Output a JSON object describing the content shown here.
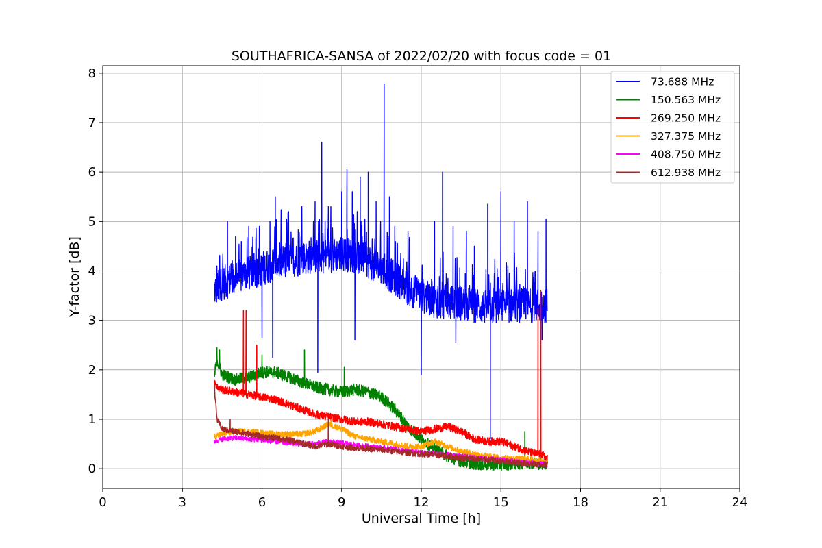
{
  "chart_data": {
    "type": "line",
    "title": "SOUTHAFRICA-SANSA of 2022/02/20 with focus code = 01",
    "xlabel": "Universal Time [h]",
    "ylabel": "Y-factor [dB]",
    "xlim": [
      0,
      24
    ],
    "ylim": [
      -0.4,
      8.15
    ],
    "xticks": [
      0,
      3,
      6,
      9,
      12,
      15,
      18,
      21,
      24
    ],
    "yticks": [
      0,
      1,
      2,
      3,
      4,
      5,
      6,
      7,
      8
    ],
    "grid": true,
    "legend_position": "top-right",
    "series": [
      {
        "name": " 73.688 MHz",
        "color": "#0000ff",
        "x": [
          4.2,
          4.5,
          5.0,
          5.5,
          6.0,
          6.5,
          7.0,
          7.5,
          8.0,
          8.5,
          9.0,
          9.5,
          10.0,
          10.5,
          11.0,
          11.5,
          12.0,
          12.5,
          13.0,
          13.5,
          14.0,
          14.5,
          15.0,
          15.5,
          16.0,
          16.5,
          16.75
        ],
        "y": [
          3.6,
          3.75,
          3.85,
          3.95,
          4.05,
          4.15,
          4.2,
          4.25,
          4.3,
          4.3,
          4.35,
          4.3,
          4.2,
          4.05,
          3.85,
          3.65,
          3.5,
          3.4,
          3.35,
          3.35,
          3.3,
          3.25,
          3.3,
          3.3,
          3.3,
          3.3,
          3.3
        ],
        "spikes": [
          [
            4.3,
            4.1
          ],
          [
            4.7,
            5.0
          ],
          [
            5.0,
            4.7
          ],
          [
            5.5,
            4.9
          ],
          [
            5.9,
            4.9
          ],
          [
            6.0,
            2.65
          ],
          [
            6.3,
            5.0
          ],
          [
            6.4,
            2.25
          ],
          [
            6.5,
            5.5
          ],
          [
            7.0,
            5.2
          ],
          [
            7.5,
            5.3
          ],
          [
            8.0,
            5.4
          ],
          [
            8.1,
            1.95
          ],
          [
            8.25,
            6.6
          ],
          [
            8.5,
            5.3
          ],
          [
            9.0,
            5.6
          ],
          [
            9.2,
            6.05
          ],
          [
            9.4,
            5.6
          ],
          [
            9.5,
            2.6
          ],
          [
            9.7,
            5.9
          ],
          [
            10.0,
            6.0
          ],
          [
            10.3,
            5.4
          ],
          [
            10.6,
            7.78
          ],
          [
            10.8,
            5.5
          ],
          [
            11.0,
            4.9
          ],
          [
            11.5,
            4.8
          ],
          [
            12.0,
            1.9
          ],
          [
            12.5,
            5.0
          ],
          [
            12.8,
            6.0
          ],
          [
            13.2,
            4.9
          ],
          [
            13.3,
            2.55
          ],
          [
            13.7,
            4.8
          ],
          [
            14.0,
            4.5
          ],
          [
            14.5,
            5.35
          ],
          [
            14.6,
            0.6
          ],
          [
            15.0,
            5.6
          ],
          [
            15.5,
            5.0
          ],
          [
            16.0,
            5.4
          ],
          [
            16.4,
            4.8
          ],
          [
            16.55,
            2.6
          ],
          [
            16.7,
            5.05
          ]
        ],
        "noise": 0.35
      },
      {
        "name": "150.563 MHz",
        "color": "#008000",
        "x": [
          4.2,
          4.3,
          4.5,
          5.0,
          5.5,
          6.0,
          6.5,
          7.0,
          7.5,
          8.0,
          8.5,
          9.0,
          9.5,
          10.0,
          10.5,
          11.0,
          11.5,
          12.0,
          12.5,
          13.0,
          13.5,
          14.0,
          14.5,
          15.0,
          15.5,
          16.0,
          16.5,
          16.75
        ],
        "y": [
          1.85,
          2.2,
          1.9,
          1.8,
          1.85,
          1.95,
          1.95,
          1.85,
          1.75,
          1.65,
          1.6,
          1.55,
          1.6,
          1.55,
          1.45,
          1.2,
          0.85,
          0.6,
          0.4,
          0.25,
          0.15,
          0.1,
          0.08,
          0.08,
          0.1,
          0.12,
          0.1,
          0.1
        ],
        "spikes": [
          [
            4.3,
            2.45
          ],
          [
            4.4,
            2.4
          ],
          [
            6.0,
            2.3
          ],
          [
            7.6,
            2.4
          ],
          [
            9.1,
            2.05
          ],
          [
            15.9,
            0.75
          ]
        ],
        "noise": 0.12
      },
      {
        "name": "269.250 MHz",
        "color": "#ff0000",
        "x": [
          4.2,
          4.3,
          4.5,
          5.0,
          5.5,
          6.0,
          6.5,
          7.0,
          7.5,
          8.0,
          8.5,
          9.0,
          9.5,
          10.0,
          10.5,
          11.0,
          11.5,
          12.0,
          12.5,
          13.0,
          13.5,
          14.0,
          14.5,
          15.0,
          15.5,
          16.0,
          16.3,
          16.5,
          16.75
        ],
        "y": [
          1.8,
          1.65,
          1.6,
          1.55,
          1.5,
          1.45,
          1.4,
          1.3,
          1.2,
          1.1,
          1.05,
          1.0,
          0.95,
          0.95,
          0.9,
          0.85,
          0.8,
          0.75,
          0.8,
          0.85,
          0.75,
          0.6,
          0.55,
          0.55,
          0.45,
          0.35,
          0.3,
          0.3,
          0.2
        ],
        "spikes": [
          [
            5.3,
            3.2
          ],
          [
            5.4,
            3.2
          ],
          [
            5.8,
            2.5
          ],
          [
            16.4,
            3.25
          ],
          [
            16.5,
            3.6
          ],
          [
            16.55,
            0.3
          ]
        ],
        "noise": 0.08
      },
      {
        "name": "327.375 MHz",
        "color": "#ffa500",
        "x": [
          4.2,
          4.5,
          5.0,
          5.5,
          6.0,
          6.5,
          7.0,
          7.5,
          8.0,
          8.5,
          9.0,
          9.5,
          10.0,
          10.5,
          11.0,
          11.5,
          12.0,
          12.5,
          13.0,
          13.5,
          14.0,
          14.5,
          15.0,
          15.5,
          16.0,
          16.5,
          16.75
        ],
        "y": [
          0.65,
          0.7,
          0.75,
          0.75,
          0.72,
          0.7,
          0.7,
          0.7,
          0.75,
          0.9,
          0.8,
          0.65,
          0.6,
          0.55,
          0.5,
          0.45,
          0.45,
          0.55,
          0.45,
          0.35,
          0.3,
          0.25,
          0.22,
          0.2,
          0.2,
          0.15,
          0.12
        ],
        "spikes": [
          [
            8.6,
            1.0
          ]
        ],
        "noise": 0.06
      },
      {
        "name": "408.750 MHz",
        "color": "#ff00ff",
        "x": [
          4.2,
          4.5,
          5.0,
          5.5,
          6.0,
          6.5,
          7.0,
          7.5,
          8.0,
          8.5,
          9.0,
          9.5,
          10.0,
          10.5,
          11.0,
          11.5,
          12.0,
          12.5,
          13.0,
          13.5,
          14.0,
          14.5,
          15.0,
          15.5,
          16.0,
          16.5,
          16.75
        ],
        "y": [
          0.55,
          0.6,
          0.62,
          0.6,
          0.58,
          0.55,
          0.52,
          0.5,
          0.5,
          0.55,
          0.52,
          0.48,
          0.45,
          0.42,
          0.4,
          0.35,
          0.32,
          0.3,
          0.28,
          0.25,
          0.22,
          0.2,
          0.18,
          0.15,
          0.12,
          0.1,
          0.08
        ],
        "spikes": [],
        "noise": 0.05
      },
      {
        "name": "612.938 MHz",
        "color": "#a52a2a",
        "x": [
          4.2,
          4.3,
          4.5,
          5.0,
          5.5,
          6.0,
          6.5,
          7.0,
          7.5,
          8.0,
          8.5,
          9.0,
          9.5,
          10.0,
          10.5,
          11.0,
          11.5,
          12.0,
          12.5,
          13.0,
          13.5,
          14.0,
          14.5,
          15.0,
          15.5,
          16.0,
          16.5,
          16.75
        ],
        "y": [
          1.7,
          1.0,
          0.8,
          0.75,
          0.7,
          0.65,
          0.62,
          0.58,
          0.52,
          0.45,
          0.5,
          0.45,
          0.42,
          0.4,
          0.38,
          0.35,
          0.32,
          0.3,
          0.28,
          0.25,
          0.22,
          0.2,
          0.18,
          0.15,
          0.12,
          0.1,
          0.08,
          0.08
        ],
        "spikes": [
          [
            4.8,
            1.0
          ],
          [
            8.5,
            1.0
          ]
        ],
        "noise": 0.06
      }
    ]
  }
}
